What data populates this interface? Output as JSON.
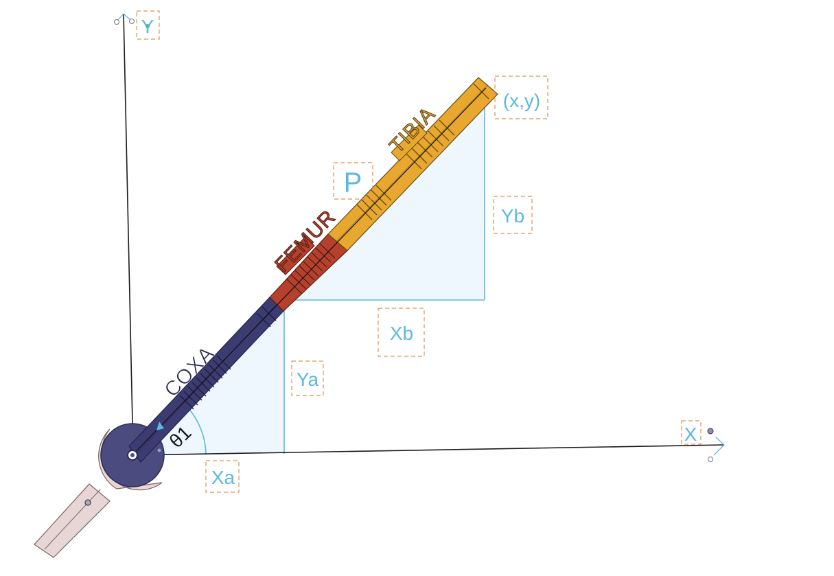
{
  "labels": {
    "y_axis": "Y",
    "x_axis": "X",
    "end_point": "(x,y)",
    "p": "P",
    "yb": "Yb",
    "xb": "Xb",
    "ya": "Ya",
    "xa": "Xa",
    "theta": "θ1"
  },
  "segments": {
    "coxa": "COXA",
    "femur": "FEMUR",
    "tibia": "TIBIA"
  },
  "colors": {
    "axis": "#1a1a1a",
    "dimension": "#5bb8e3",
    "triangle_fill": "#eef7fd",
    "coxa": "#3c3c72",
    "femur": "#b5412d",
    "tibia": "#e8a830",
    "base": "#e8d6d6",
    "note_box": "#e2904f"
  }
}
